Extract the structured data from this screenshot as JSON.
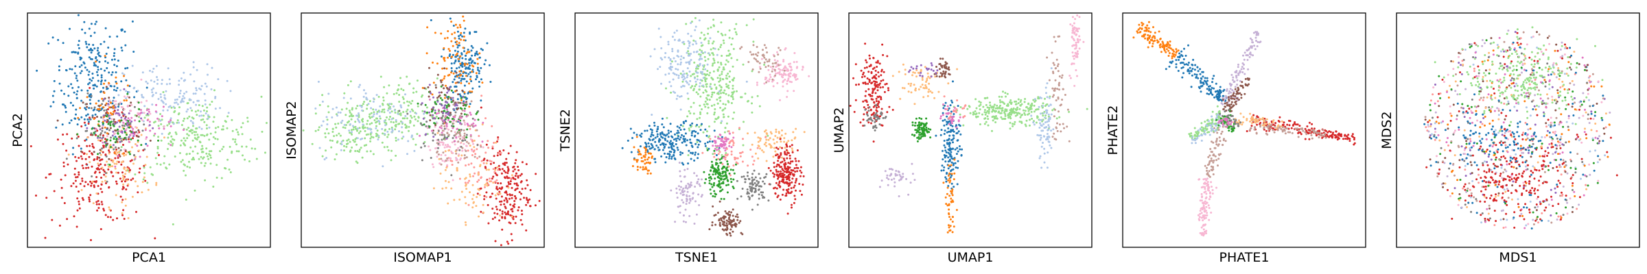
{
  "palette": {
    "c0": "#1f77b4",
    "c1": "#ff7f0e",
    "c2": "#2ca02c",
    "c3": "#d62728",
    "c4": "#9467bd",
    "c5": "#8c564b",
    "c6": "#e377c2",
    "c7": "#7f7f7f",
    "c8": "#aec7e8",
    "c9": "#ffbb78",
    "c10": "#98df8a",
    "c11": "#ff9896",
    "c12": "#c5b0d5",
    "c13": "#c49c94",
    "c14": "#f7b6d2"
  },
  "chart_data": [
    {
      "type": "scatter",
      "title": "",
      "xlabel": "PCA1",
      "ylabel": "PCA2",
      "xticks": [],
      "yticks": [],
      "xlim": [
        0,
        100
      ],
      "ylim": [
        0,
        100
      ],
      "grid": false,
      "legend": "none",
      "clusters": [
        {
          "color": "c0",
          "cx": 27,
          "cy": 72,
          "sx": 8,
          "sy": 14,
          "n": 260
        },
        {
          "color": "c3",
          "cx": 30,
          "cy": 32,
          "sx": 10,
          "sy": 11,
          "n": 240
        },
        {
          "color": "c10",
          "cx": 68,
          "cy": 46,
          "sx": 14,
          "sy": 9,
          "n": 260
        },
        {
          "color": "c8",
          "cx": 60,
          "cy": 64,
          "sx": 10,
          "sy": 7,
          "n": 140
        },
        {
          "color": "c9",
          "cx": 38,
          "cy": 36,
          "sx": 7,
          "sy": 9,
          "n": 100
        },
        {
          "color": "c7",
          "cx": 36,
          "cy": 50,
          "sx": 7,
          "sy": 7,
          "n": 70
        },
        {
          "color": "c5",
          "cx": 35,
          "cy": 53,
          "sx": 6,
          "sy": 7,
          "n": 60
        },
        {
          "color": "c6",
          "cx": 45,
          "cy": 52,
          "sx": 7,
          "sy": 6,
          "n": 60
        },
        {
          "color": "c14",
          "cx": 40,
          "cy": 56,
          "sx": 6,
          "sy": 6,
          "n": 50
        },
        {
          "color": "c1",
          "cx": 34,
          "cy": 60,
          "sx": 5,
          "sy": 8,
          "n": 40
        },
        {
          "color": "c2",
          "cx": 36,
          "cy": 48,
          "sx": 6,
          "sy": 6,
          "n": 50
        },
        {
          "color": "c4",
          "cx": 38,
          "cy": 52,
          "sx": 6,
          "sy": 6,
          "n": 40
        }
      ]
    },
    {
      "type": "scatter",
      "title": "",
      "xlabel": "ISOMAP1",
      "ylabel": "ISOMAP2",
      "xticks": [],
      "yticks": [],
      "xlim": [
        0,
        100
      ],
      "ylim": [
        0,
        100
      ],
      "grid": false,
      "legend": "none",
      "clusters": [
        {
          "color": "c10",
          "cx": 22,
          "cy": 50,
          "sx": 9,
          "sy": 6,
          "n": 180
        },
        {
          "color": "c10",
          "cx": 40,
          "cy": 58,
          "sx": 8,
          "sy": 7,
          "n": 140
        },
        {
          "color": "c8",
          "cx": 30,
          "cy": 55,
          "sx": 12,
          "sy": 8,
          "n": 110
        },
        {
          "color": "c0",
          "cx": 67,
          "cy": 78,
          "sx": 4,
          "sy": 9,
          "n": 170
        },
        {
          "color": "c1",
          "cx": 64,
          "cy": 80,
          "sx": 5,
          "sy": 9,
          "n": 90
        },
        {
          "color": "c3",
          "cx": 84,
          "cy": 24,
          "sx": 5,
          "sy": 10,
          "n": 220
        },
        {
          "color": "c11",
          "cx": 72,
          "cy": 36,
          "sx": 6,
          "sy": 8,
          "n": 70
        },
        {
          "color": "c9",
          "cx": 70,
          "cy": 30,
          "sx": 7,
          "sy": 10,
          "n": 80
        },
        {
          "color": "c14",
          "cx": 62,
          "cy": 44,
          "sx": 5,
          "sy": 5,
          "n": 80
        },
        {
          "color": "c7",
          "cx": 58,
          "cy": 52,
          "sx": 6,
          "sy": 7,
          "n": 70
        },
        {
          "color": "c2",
          "cx": 60,
          "cy": 58,
          "sx": 5,
          "sy": 6,
          "n": 70
        },
        {
          "color": "c5",
          "cx": 60,
          "cy": 64,
          "sx": 5,
          "sy": 6,
          "n": 50
        },
        {
          "color": "c6",
          "cx": 63,
          "cy": 52,
          "sx": 5,
          "sy": 5,
          "n": 50
        },
        {
          "color": "c4",
          "cx": 58,
          "cy": 60,
          "sx": 5,
          "sy": 5,
          "n": 40
        },
        {
          "color": "c13",
          "cx": 66,
          "cy": 46,
          "sx": 5,
          "sy": 6,
          "n": 60
        }
      ]
    },
    {
      "type": "scatter",
      "title": "",
      "xlabel": "TSNE1",
      "ylabel": "TSNE2",
      "xticks": [],
      "yticks": [],
      "xlim": [
        0,
        100
      ],
      "ylim": [
        0,
        100
      ],
      "grid": false,
      "legend": "none",
      "clusters": [
        {
          "color": "c10",
          "cx": 57,
          "cy": 70,
          "sx": 7,
          "sy": 13,
          "n": 320
        },
        {
          "color": "c8",
          "cx": 45,
          "cy": 78,
          "sx": 6,
          "sy": 8,
          "n": 150
        },
        {
          "color": "c14",
          "cx": 86,
          "cy": 74,
          "sx": 4,
          "sy": 4,
          "n": 110
        },
        {
          "color": "c13",
          "cx": 77,
          "cy": 80,
          "sx": 4,
          "sy": 4,
          "n": 50
        },
        {
          "color": "c0",
          "cx": 40,
          "cy": 45,
          "sx": 8,
          "sy": 4,
          "n": 220
        },
        {
          "color": "c9",
          "cx": 82,
          "cy": 45,
          "sx": 5,
          "sy": 3,
          "n": 70
        },
        {
          "color": "c3",
          "cx": 87,
          "cy": 32,
          "sx": 3,
          "sy": 6,
          "n": 200
        },
        {
          "color": "c1",
          "cx": 28,
          "cy": 38,
          "sx": 2,
          "sy": 3,
          "n": 50
        },
        {
          "color": "c2",
          "cx": 59,
          "cy": 30,
          "sx": 3,
          "sy": 4,
          "n": 140
        },
        {
          "color": "c12",
          "cx": 46,
          "cy": 23,
          "sx": 3,
          "sy": 5,
          "n": 80
        },
        {
          "color": "c7",
          "cx": 74,
          "cy": 26,
          "sx": 3,
          "sy": 3,
          "n": 80
        },
        {
          "color": "c5",
          "cx": 63,
          "cy": 11,
          "sx": 3,
          "sy": 3,
          "n": 90
        },
        {
          "color": "c6",
          "cx": 61,
          "cy": 45,
          "sx": 2,
          "sy": 2,
          "n": 60
        },
        {
          "color": "c11",
          "cx": 66,
          "cy": 40,
          "sx": 5,
          "sy": 4,
          "n": 50
        }
      ]
    },
    {
      "type": "scatter",
      "title": "",
      "xlabel": "UMAP1",
      "ylabel": "UMAP2",
      "xticks": [],
      "yticks": [],
      "xlim": [
        0,
        100
      ],
      "ylim": [
        0,
        100
      ],
      "grid": false,
      "legend": "none",
      "clusters": [
        {
          "color": "c10",
          "cx": 66,
          "cy": 58,
          "sx": 9,
          "sy": 3,
          "n": 260
        },
        {
          "color": "c8",
          "cx": 81,
          "cy": 50,
          "sx": 2,
          "sy": 8,
          "n": 80
        },
        {
          "color": "c14",
          "cx": 93,
          "cy": 87,
          "sx": 1,
          "sy": 8,
          "n": 70
        },
        {
          "color": "c13",
          "cx": 86,
          "cy": 66,
          "sx": 2,
          "sy": 10,
          "n": 60
        },
        {
          "color": "c0",
          "cx": 42,
          "cy": 45,
          "sx": 2,
          "sy": 10,
          "n": 150
        },
        {
          "color": "c1",
          "cx": 42,
          "cy": 18,
          "sx": 1,
          "sy": 8,
          "n": 50
        },
        {
          "color": "c2",
          "cx": 30,
          "cy": 50,
          "sx": 2,
          "sy": 2,
          "n": 80
        },
        {
          "color": "c3",
          "cx": 10,
          "cy": 68,
          "sx": 3,
          "sy": 8,
          "n": 160
        },
        {
          "color": "c7",
          "cx": 10,
          "cy": 56,
          "sx": 2,
          "sy": 3,
          "n": 40
        },
        {
          "color": "c9",
          "cx": 28,
          "cy": 70,
          "sx": 5,
          "sy": 5,
          "n": 60
        },
        {
          "color": "c5",
          "cx": 39,
          "cy": 76,
          "sx": 2,
          "sy": 2,
          "n": 40
        },
        {
          "color": "c4",
          "cx": 30,
          "cy": 75,
          "sx": 3,
          "sy": 2,
          "n": 20
        },
        {
          "color": "c12",
          "cx": 22,
          "cy": 30,
          "sx": 4,
          "sy": 3,
          "n": 40
        },
        {
          "color": "c6",
          "cx": 42,
          "cy": 55,
          "sx": 2,
          "sy": 2,
          "n": 30
        },
        {
          "color": "c11",
          "cx": 44,
          "cy": 58,
          "sx": 2,
          "sy": 2,
          "n": 20
        }
      ]
    },
    {
      "type": "scatter",
      "title": "",
      "xlabel": "PHATE1",
      "ylabel": "PHATE2",
      "xticks": [],
      "yticks": [],
      "xlim": [
        0,
        100
      ],
      "ylim": [
        0,
        100
      ],
      "grid": false,
      "legend": "none",
      "arms": [
        {
          "color": "c1",
          "x0": 6,
          "y0": 94,
          "x1": 22,
          "y1": 82,
          "n": 110,
          "w": 2.2
        },
        {
          "color": "c0",
          "x0": 22,
          "y0": 82,
          "x1": 42,
          "y1": 62,
          "n": 140,
          "w": 2.4
        },
        {
          "color": "c3",
          "x0": 52,
          "y0": 54,
          "x1": 96,
          "y1": 46,
          "n": 170,
          "w": 1.8
        },
        {
          "color": "c13",
          "x0": 52,
          "y0": 52,
          "x1": 84,
          "y1": 48,
          "n": 80,
          "w": 1.6
        },
        {
          "color": "c12",
          "x0": 42,
          "y0": 60,
          "x1": 56,
          "y1": 92,
          "n": 110,
          "w": 1.8
        },
        {
          "color": "c5",
          "x0": 42,
          "y0": 58,
          "x1": 52,
          "y1": 72,
          "n": 70,
          "w": 1.6
        },
        {
          "color": "c13",
          "x0": 42,
          "y0": 56,
          "x1": 35,
          "y1": 30,
          "n": 80,
          "w": 1.8
        },
        {
          "color": "c14",
          "x0": 35,
          "y0": 30,
          "x1": 33,
          "y1": 5,
          "n": 110,
          "w": 1.6
        },
        {
          "color": "c10",
          "x0": 42,
          "y0": 56,
          "x1": 28,
          "y1": 47,
          "n": 90,
          "w": 2.2
        },
        {
          "color": "c8",
          "x0": 42,
          "y0": 55,
          "x1": 28,
          "y1": 45,
          "n": 50,
          "w": 2.0
        },
        {
          "color": "c9",
          "x0": 44,
          "y0": 55,
          "x1": 66,
          "y1": 52,
          "n": 50,
          "w": 1.6
        },
        {
          "color": "c2",
          "x0": 40,
          "y0": 56,
          "x1": 46,
          "y1": 50,
          "n": 40,
          "w": 2.0
        },
        {
          "color": "c7",
          "x0": 40,
          "y0": 57,
          "x1": 48,
          "y1": 52,
          "n": 30,
          "w": 2.0
        },
        {
          "color": "c6",
          "x0": 41,
          "y0": 55,
          "x1": 44,
          "y1": 52,
          "n": 20,
          "w": 1.5
        }
      ]
    },
    {
      "type": "scatter",
      "title": "",
      "xlabel": "MDS1",
      "ylabel": "MDS2",
      "xticks": [],
      "yticks": [],
      "xlim": [
        0,
        100
      ],
      "ylim": [
        0,
        100
      ],
      "grid": false,
      "legend": "none",
      "disk": {
        "cx": 50,
        "cy": 50,
        "rx": 39,
        "ry": 43,
        "n": 1000,
        "colors": [
          "c0",
          "c1",
          "c2",
          "c3",
          "c4",
          "c5",
          "c6",
          "c7",
          "c8",
          "c9",
          "c11",
          "c12",
          "c13",
          "c14"
        ]
      },
      "clusters": [
        {
          "color": "c10",
          "cx": 52,
          "cy": 72,
          "sx": 12,
          "sy": 8,
          "n": 220
        },
        {
          "color": "c3",
          "cx": 48,
          "cy": 28,
          "sx": 12,
          "sy": 8,
          "n": 200
        },
        {
          "color": "c0",
          "cx": 42,
          "cy": 45,
          "sx": 12,
          "sy": 5,
          "n": 100
        }
      ]
    }
  ]
}
